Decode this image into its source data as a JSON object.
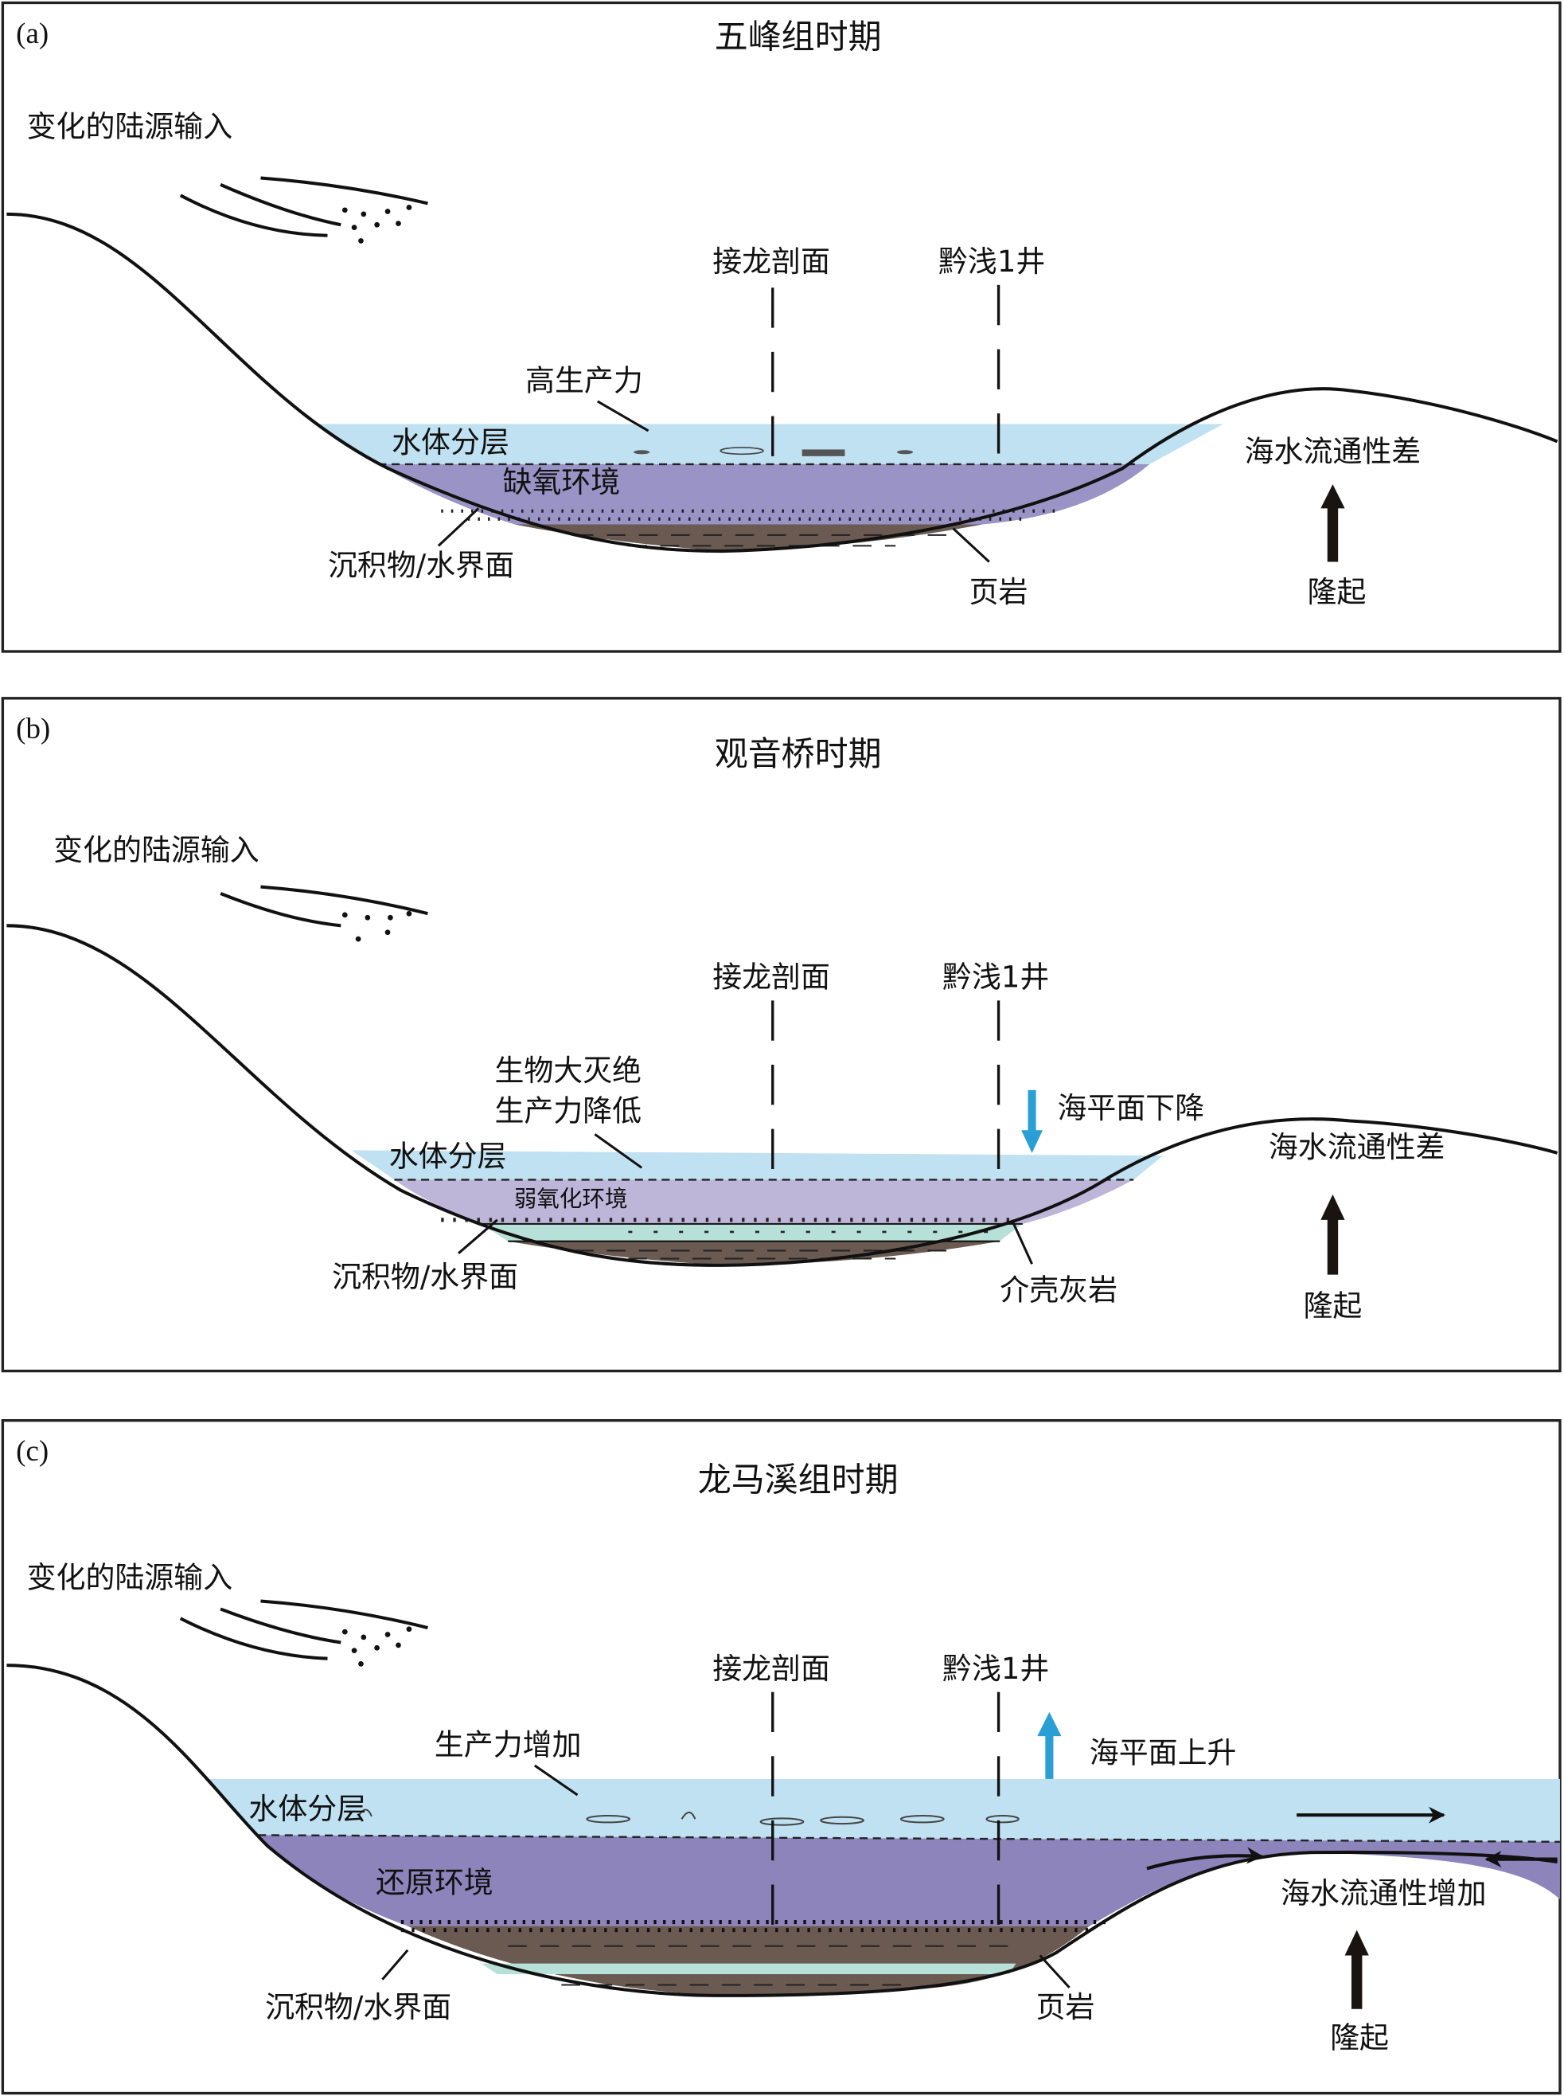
{
  "colors": {
    "water": "#bfe1f1",
    "anoxic": "#9a93c5",
    "weak_oxic": "#beb6d9",
    "reducing": "#8d84bb",
    "shale": "#6a5a52",
    "shell_limestone": "#b7e0d9",
    "sea_level_arrow": "#2a9fd6",
    "uplift_arrow": "#1a1410"
  },
  "panels": [
    {
      "tag": "(a)",
      "title": "五峰组时期",
      "source": "变化的陆源输入",
      "section1": "接龙剖面",
      "section2": "黔浅1井",
      "productivity": "高生产力",
      "stratification": "水体分层",
      "redox": "缺氧环境",
      "interface": "沉积物/水界面",
      "bottom": "页岩",
      "circulation": "海水流通性差",
      "uplift": "隆起"
    },
    {
      "tag": "(b)",
      "title": "观音桥时期",
      "source": "变化的陆源输入",
      "section1": "接龙剖面",
      "section2": "黔浅1井",
      "extinction": "生物大灭绝",
      "productivity": "生产力降低",
      "stratification": "水体分层",
      "redox": "弱氧化环境",
      "interface": "沉积物/水界面",
      "bottom": "介壳灰岩",
      "sea_level": "海平面下降",
      "circulation": "海水流通性差",
      "uplift": "隆起"
    },
    {
      "tag": "(c)",
      "title": "龙马溪组时期",
      "source": "变化的陆源输入",
      "section1": "接龙剖面",
      "section2": "黔浅1井",
      "productivity": "生产力增加",
      "stratification": "水体分层",
      "redox": "还原环境",
      "interface": "沉积物/水界面",
      "bottom": "页岩",
      "sea_level": "海平面上升",
      "circulation": "海水流通性增加",
      "uplift": "隆起"
    }
  ]
}
